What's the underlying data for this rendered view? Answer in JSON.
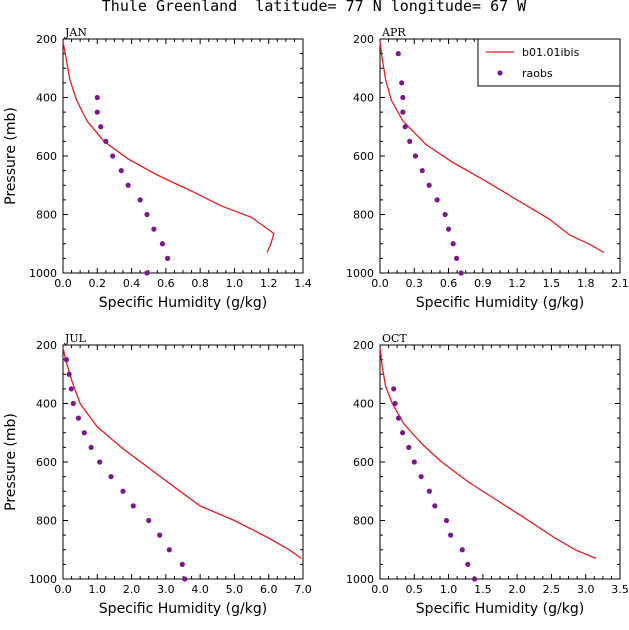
{
  "figure_title": "Thule Greenland  latitude= 77 N longitude= 67 W",
  "colors": {
    "model": "#e41a1c",
    "obs": "#7a1a8a",
    "axis": "#000000"
  },
  "chart_data": [
    {
      "type": "line",
      "panel_label": "JAN",
      "xlabel": "Specific Humidity (g/kg)",
      "ylabel": "Pressure (mb)",
      "xlim": [
        0,
        1.4
      ],
      "ylim": [
        1000,
        200
      ],
      "y_reversed": true,
      "xticks": [
        "0.0",
        "0.2",
        "0.4",
        "0.6",
        "0.8",
        "1.0",
        "1.2",
        "1.4"
      ],
      "yticks": [
        "200",
        "400",
        "600",
        "800",
        "1000"
      ],
      "series": [
        {
          "name": "b01.01ibis",
          "kind": "line",
          "points": [
            [
              0.0,
              210
            ],
            [
              0.02,
              270
            ],
            [
              0.04,
              340
            ],
            [
              0.08,
              410
            ],
            [
              0.14,
              480
            ],
            [
              0.24,
              550
            ],
            [
              0.38,
              610
            ],
            [
              0.55,
              665
            ],
            [
              0.75,
              720
            ],
            [
              0.92,
              770
            ],
            [
              1.1,
              810
            ],
            [
              1.23,
              865
            ],
            [
              1.21,
              905
            ],
            [
              1.19,
              930
            ]
          ]
        },
        {
          "name": "raobs",
          "kind": "scatter",
          "points": [
            [
              0.2,
              400
            ],
            [
              0.2,
              450
            ],
            [
              0.22,
              500
            ],
            [
              0.25,
              550
            ],
            [
              0.29,
              600
            ],
            [
              0.34,
              650
            ],
            [
              0.38,
              700
            ],
            [
              0.45,
              750
            ],
            [
              0.49,
              800
            ],
            [
              0.53,
              850
            ],
            [
              0.58,
              900
            ],
            [
              0.61,
              950
            ],
            [
              0.49,
              1000
            ]
          ]
        }
      ]
    },
    {
      "type": "line",
      "panel_label": "APR",
      "xlabel": "Specific Humidity (g/kg)",
      "ylabel": "",
      "xlim": [
        0,
        2.1
      ],
      "ylim": [
        1000,
        200
      ],
      "y_reversed": true,
      "xticks": [
        "0.0",
        "0.3",
        "0.6",
        "0.9",
        "1.2",
        "1.5",
        "1.8",
        "2.1"
      ],
      "yticks": [
        "200",
        "400",
        "600",
        "800",
        "1000"
      ],
      "legend": {
        "position": "top-right",
        "entries": [
          "b01.01ibis",
          "raobs"
        ]
      },
      "series": [
        {
          "name": "b01.01ibis",
          "kind": "line",
          "points": [
            [
              0.0,
              210
            ],
            [
              0.02,
              270
            ],
            [
              0.05,
              340
            ],
            [
              0.1,
              410
            ],
            [
              0.2,
              480
            ],
            [
              0.4,
              560
            ],
            [
              0.63,
              620
            ],
            [
              0.9,
              680
            ],
            [
              1.2,
              750
            ],
            [
              1.48,
              815
            ],
            [
              1.66,
              870
            ],
            [
              1.85,
              905
            ],
            [
              1.96,
              930
            ]
          ]
        },
        {
          "name": "raobs",
          "kind": "scatter",
          "points": [
            [
              0.16,
              250
            ],
            [
              0.19,
              350
            ],
            [
              0.2,
              400
            ],
            [
              0.2,
              450
            ],
            [
              0.22,
              500
            ],
            [
              0.26,
              550
            ],
            [
              0.31,
              600
            ],
            [
              0.37,
              650
            ],
            [
              0.43,
              700
            ],
            [
              0.5,
              750
            ],
            [
              0.57,
              800
            ],
            [
              0.6,
              850
            ],
            [
              0.64,
              900
            ],
            [
              0.67,
              950
            ],
            [
              0.71,
              1000
            ]
          ]
        }
      ]
    },
    {
      "type": "line",
      "panel_label": "JUL",
      "xlabel": "Specific Humidity (g/kg)",
      "ylabel": "Pressure (mb)",
      "xlim": [
        0,
        7.0
      ],
      "ylim": [
        1000,
        200
      ],
      "y_reversed": true,
      "xticks": [
        "0.0",
        "1.0",
        "2.0",
        "3.0",
        "4.0",
        "5.0",
        "6.0",
        "7.0"
      ],
      "yticks": [
        "200",
        "400",
        "600",
        "800",
        "1000"
      ],
      "series": [
        {
          "name": "b01.01ibis",
          "kind": "line",
          "points": [
            [
              0.0,
              210
            ],
            [
              0.1,
              260
            ],
            [
              0.25,
              320
            ],
            [
              0.5,
              400
            ],
            [
              1.0,
              480
            ],
            [
              1.7,
              550
            ],
            [
              2.5,
              620
            ],
            [
              3.3,
              690
            ],
            [
              4.0,
              750
            ],
            [
              5.0,
              800
            ],
            [
              6.0,
              860
            ],
            [
              6.6,
              900
            ],
            [
              6.95,
              930
            ]
          ]
        },
        {
          "name": "raobs",
          "kind": "scatter",
          "points": [
            [
              0.1,
              250
            ],
            [
              0.18,
              300
            ],
            [
              0.24,
              350
            ],
            [
              0.3,
              400
            ],
            [
              0.45,
              450
            ],
            [
              0.62,
              500
            ],
            [
              0.82,
              550
            ],
            [
              1.07,
              600
            ],
            [
              1.4,
              650
            ],
            [
              1.75,
              700
            ],
            [
              2.05,
              750
            ],
            [
              2.5,
              800
            ],
            [
              2.82,
              850
            ],
            [
              3.1,
              900
            ],
            [
              3.48,
              950
            ],
            [
              3.55,
              1000
            ]
          ]
        }
      ]
    },
    {
      "type": "line",
      "panel_label": "OCT",
      "xlabel": "Specific Humidity (g/kg)",
      "ylabel": "",
      "xlim": [
        0,
        3.5
      ],
      "ylim": [
        1000,
        200
      ],
      "y_reversed": true,
      "xticks": [
        "0.0",
        "0.5",
        "1.0",
        "1.5",
        "2.0",
        "2.5",
        "3.0",
        "3.5"
      ],
      "yticks": [
        "200",
        "400",
        "600",
        "800",
        "1000"
      ],
      "series": [
        {
          "name": "b01.01ibis",
          "kind": "line",
          "points": [
            [
              0.0,
              210
            ],
            [
              0.03,
              270
            ],
            [
              0.08,
              340
            ],
            [
              0.18,
              400
            ],
            [
              0.35,
              470
            ],
            [
              0.62,
              540
            ],
            [
              0.9,
              600
            ],
            [
              1.3,
              670
            ],
            [
              1.7,
              730
            ],
            [
              2.1,
              790
            ],
            [
              2.55,
              860
            ],
            [
              2.85,
              900
            ],
            [
              3.15,
              930
            ]
          ]
        },
        {
          "name": "raobs",
          "kind": "scatter",
          "points": [
            [
              0.2,
              350
            ],
            [
              0.22,
              400
            ],
            [
              0.27,
              450
            ],
            [
              0.33,
              500
            ],
            [
              0.42,
              550
            ],
            [
              0.5,
              600
            ],
            [
              0.6,
              650
            ],
            [
              0.72,
              700
            ],
            [
              0.8,
              750
            ],
            [
              0.97,
              800
            ],
            [
              1.03,
              850
            ],
            [
              1.2,
              900
            ],
            [
              1.28,
              950
            ],
            [
              1.38,
              1000
            ]
          ]
        }
      ]
    }
  ]
}
